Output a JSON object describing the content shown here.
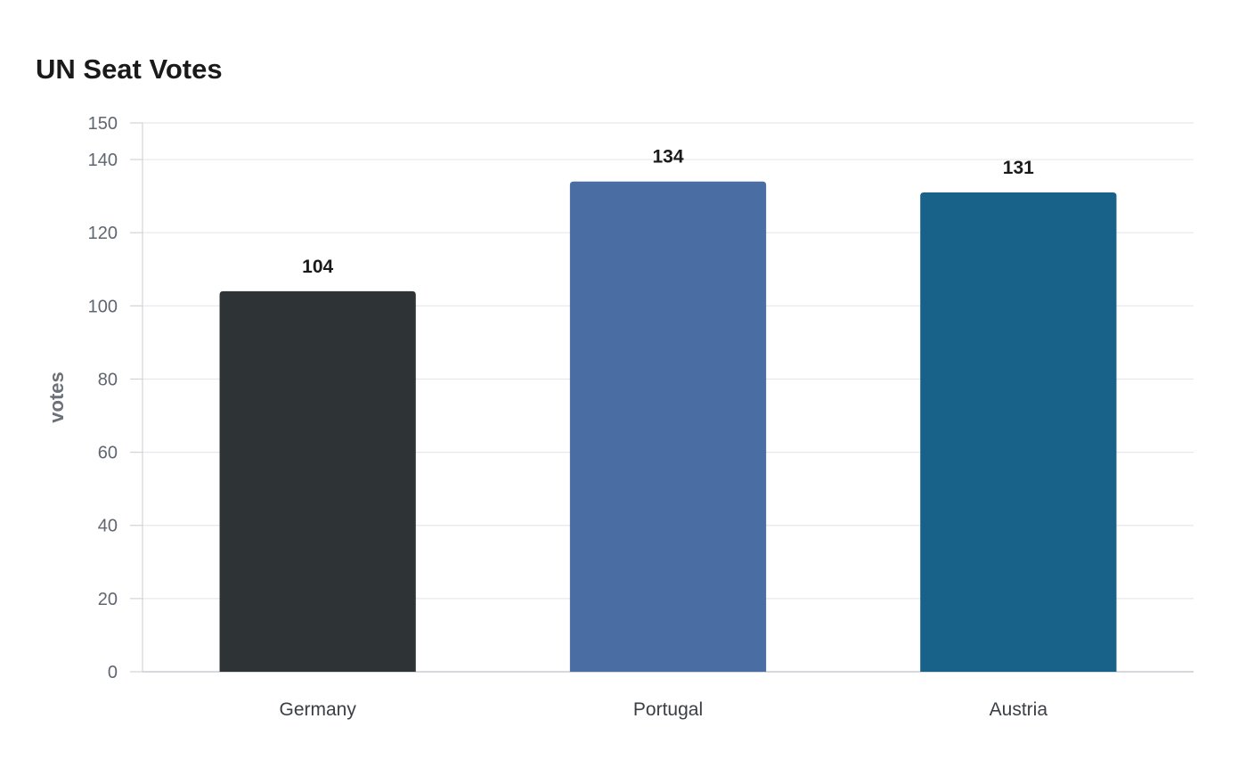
{
  "chart_data": {
    "type": "bar",
    "title": "UN Seat Votes",
    "xlabel": "",
    "ylabel": "votes",
    "categories": [
      "Germany",
      "Portugal",
      "Austria"
    ],
    "values": [
      104,
      134,
      131
    ],
    "colors": [
      "#2e3436",
      "#4a6ea3",
      "#186188"
    ],
    "ylim": [
      0,
      150
    ],
    "yticks": [
      0,
      20,
      40,
      60,
      80,
      100,
      120,
      140,
      150
    ],
    "grid": true,
    "legend": "none"
  }
}
